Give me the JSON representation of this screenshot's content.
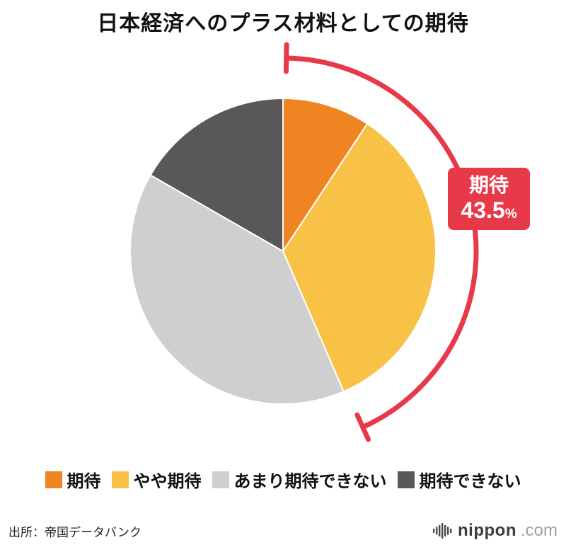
{
  "title": "日本経済へのプラス材料としての期待",
  "chart_data": {
    "type": "pie",
    "categories": [
      "期待",
      "やや期待",
      "あまり期待できない",
      "期待できない"
    ],
    "values": [
      9.3,
      34.2,
      39.8,
      16.7
    ],
    "colors": [
      "#ee8422",
      "#f7c245",
      "#cfcfcf",
      "#595757"
    ],
    "start_angle_deg": 0,
    "direction": "clockwise",
    "legend_position": "bottom",
    "annotation": {
      "label": "期待",
      "value": "43.5",
      "unit": "%",
      "covers_categories": [
        "期待",
        "やや期待"
      ],
      "covered_total_pct": 43.5,
      "color": "#e73948"
    }
  },
  "legend": {
    "items": [
      {
        "label": "期待",
        "color": "#ee8422"
      },
      {
        "label": "やや期待",
        "color": "#f7c245"
      },
      {
        "label": "あまり期待できない",
        "color": "#cfcfcf"
      },
      {
        "label": "期待できない",
        "color": "#595757"
      }
    ]
  },
  "footer": {
    "source": "出所：帝国データバンク",
    "brand": {
      "icon": "soundwave-bars-icon",
      "name_main": "nippon",
      "name_suffix": ".com"
    }
  }
}
